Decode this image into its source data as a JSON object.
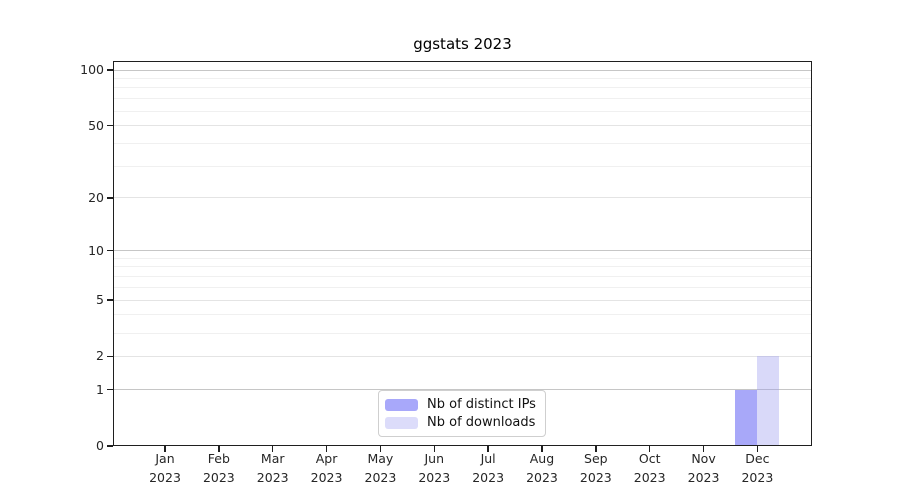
{
  "chart_data": {
    "type": "bar",
    "title": "ggstats 2023",
    "categories": [
      "Jan",
      "Feb",
      "Mar",
      "Apr",
      "May",
      "Jun",
      "Jul",
      "Aug",
      "Sep",
      "Oct",
      "Nov",
      "Dec"
    ],
    "x_year_label": "2023",
    "series": [
      {
        "name": "Nb of distinct IPs",
        "color": "#a8a8fa",
        "fill": "rgba(135,135,247,0.72)",
        "values": [
          0,
          0,
          0,
          0,
          0,
          0,
          0,
          0,
          0,
          0,
          0,
          1
        ]
      },
      {
        "name": "Nb of downloads",
        "color": "#dcdcfa",
        "fill": "rgba(155,155,240,0.38)",
        "values": [
          0,
          0,
          0,
          0,
          0,
          0,
          0,
          0,
          0,
          0,
          0,
          2
        ]
      }
    ],
    "xlabel": "",
    "ylabel": "",
    "y_axis": {
      "scale": "log1p",
      "tick_labels": [
        0,
        1,
        2,
        5,
        10,
        20,
        50,
        100
      ],
      "emphasized_breaks": [
        1,
        10,
        100
      ],
      "minor_breaks": [
        3,
        4,
        6,
        7,
        8,
        9,
        30,
        40,
        60,
        70,
        80,
        90
      ],
      "range": [
        0,
        112
      ]
    },
    "grid": "horizontal-only",
    "legend_position": "bottom-center",
    "colors": {
      "grid_emphasis": "#c6c6c6",
      "grid_major": "#e4e4e4",
      "grid_minor": "#f0f0f0",
      "panel_border": "#1f1f1f",
      "axis_text": "#262626",
      "legend_border": "#cfcfcf",
      "background": "#ffffff"
    }
  }
}
